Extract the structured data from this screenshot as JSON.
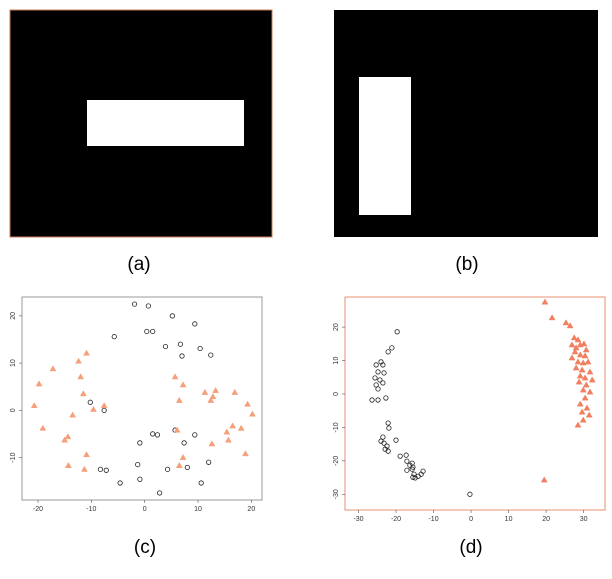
{
  "captions": [
    "(a)",
    "(b)",
    "(c)",
    "(d)"
  ],
  "chart_data": [
    {
      "type": "scatter",
      "xlim": [
        -23,
        22
      ],
      "ylim": [
        -19,
        24
      ],
      "xticks": [
        -20,
        -10,
        0,
        10,
        20
      ],
      "yticks": [
        -10,
        0,
        10,
        20
      ],
      "series": [
        {
          "color": "#222222",
          "marker": "circle",
          "x": [
            -1.9,
            0.7,
            5.2,
            -5.7,
            0.4,
            1.5,
            3.9,
            6.7,
            9.4,
            10.4,
            12.4,
            7,
            -10.2,
            -7.6,
            -0.9,
            1.5,
            2.4,
            5.7,
            9.4,
            7.4,
            -8.3,
            -7.2,
            -1.3,
            4.3,
            8,
            12,
            10.6,
            -4.6,
            -0.9,
            2.8
          ],
          "y": [
            22.5,
            22.1,
            20,
            15.6,
            16.7,
            16.7,
            13.5,
            14,
            18.3,
            13.1,
            11.7,
            11.5,
            1.7,
            0,
            -6.9,
            -5,
            -5.2,
            -4.2,
            -5.2,
            -6.9,
            -12.5,
            -12.7,
            -11.5,
            -12.5,
            -12.1,
            -11,
            -15.4,
            -15.4,
            -14.6,
            -17.5
          ]
        },
        {
          "color": "#f4a07a",
          "marker": "triangle",
          "x": [
            -20.7,
            -19.8,
            -19.1,
            -17.2,
            -14.4,
            -15,
            -14.3,
            -13.5,
            -12.4,
            -12,
            -11.5,
            -10.9,
            -10.9,
            -11.3,
            -9.6,
            -7.6,
            5.7,
            7.2,
            6.5,
            6.1,
            7.2,
            6.5,
            11.3,
            12.4,
            12.8,
            13.3,
            12.6,
            15.4,
            15.7,
            16.5,
            16.9,
            18.1,
            18.9,
            19.3,
            20.2
          ],
          "y": [
            1,
            5.6,
            -3.8,
            8.8,
            -5.6,
            -6.3,
            -11.7,
            -1,
            10.4,
            7.1,
            3.5,
            12.1,
            -9.4,
            -12.5,
            0.2,
            1,
            7.1,
            5.4,
            2.1,
            -4.2,
            -10,
            -11.7,
            3.8,
            2.1,
            2.9,
            4.2,
            -7.1,
            -4.6,
            -6.3,
            -3.3,
            3.8,
            -3.8,
            -9.2,
            1.3,
            -0.8
          ]
        }
      ]
    },
    {
      "type": "scatter",
      "xlim": [
        -33.6,
        35.7
      ],
      "ylim": [
        -34.7,
        29
      ],
      "xticks": [
        -30,
        -20,
        -10,
        0,
        10,
        20,
        30
      ],
      "yticks": [
        -30,
        -20,
        -10,
        0,
        10,
        20
      ],
      "series": [
        {
          "color": "#222222",
          "marker": "circle",
          "x": [
            -19.7,
            -21.1,
            -22.1,
            -24,
            -25.3,
            -23.5,
            -24.8,
            -23.2,
            -25.6,
            -24.3,
            -23.5,
            -25.3,
            -24.8,
            -22.7,
            -26.4,
            -24.8,
            -22.1,
            -21.9,
            -23.5,
            -24,
            -23.2,
            -22.4,
            -22.9,
            -22.1,
            -20,
            -18.9,
            -17.3,
            -17.1,
            -16.3,
            -15.7,
            -15.5,
            -15.7,
            -15.2,
            -14.1,
            -13.3,
            -12.8,
            -17.1,
            -15.5,
            -14.9,
            -0.3
          ],
          "y": [
            18.6,
            13.8,
            12.6,
            9.6,
            8.7,
            8.7,
            6.6,
            6.3,
            4.8,
            4.2,
            3.3,
            2.7,
            1.5,
            -1.2,
            -1.8,
            -1.8,
            -8.7,
            -10.2,
            -12.9,
            -14.1,
            -14.7,
            -15.6,
            -16.5,
            -17.1,
            -13.8,
            -18.6,
            -18.3,
            -20.1,
            -21.3,
            -20.7,
            -21.9,
            -22.5,
            -24,
            -24.6,
            -24,
            -23.1,
            -22.8,
            -24.9,
            -25.1,
            -30
          ]
        },
        {
          "color": "#f08060",
          "marker": "triangle",
          "x": [
            19.7,
            21.6,
            25.3,
            26.4,
            27.5,
            28.5,
            26.9,
            28,
            29.1,
            30.1,
            30.7,
            27.7,
            29.1,
            30.4,
            26.9,
            28.5,
            29.9,
            31.2,
            28,
            29.6,
            31.7,
            29.1,
            30.4,
            32.3,
            28.8,
            30.7,
            29.9,
            31.7,
            30.4,
            29.1,
            30.9,
            29.6,
            31.5,
            29.9,
            28.5,
            19.5
          ],
          "y": [
            27.5,
            22.8,
            21.3,
            20.4,
            16.8,
            16.2,
            14.7,
            13.8,
            14.7,
            15,
            13.2,
            12.6,
            11.7,
            11.4,
            10.8,
            9.6,
            9.3,
            9.6,
            7.8,
            7.2,
            6.6,
            5.4,
            4.8,
            4.2,
            3.6,
            2.7,
            1.2,
            0.6,
            -1.2,
            -3,
            -4.2,
            -5.4,
            -6.3,
            -7.8,
            -9.3,
            -25.7
          ]
        }
      ]
    }
  ]
}
